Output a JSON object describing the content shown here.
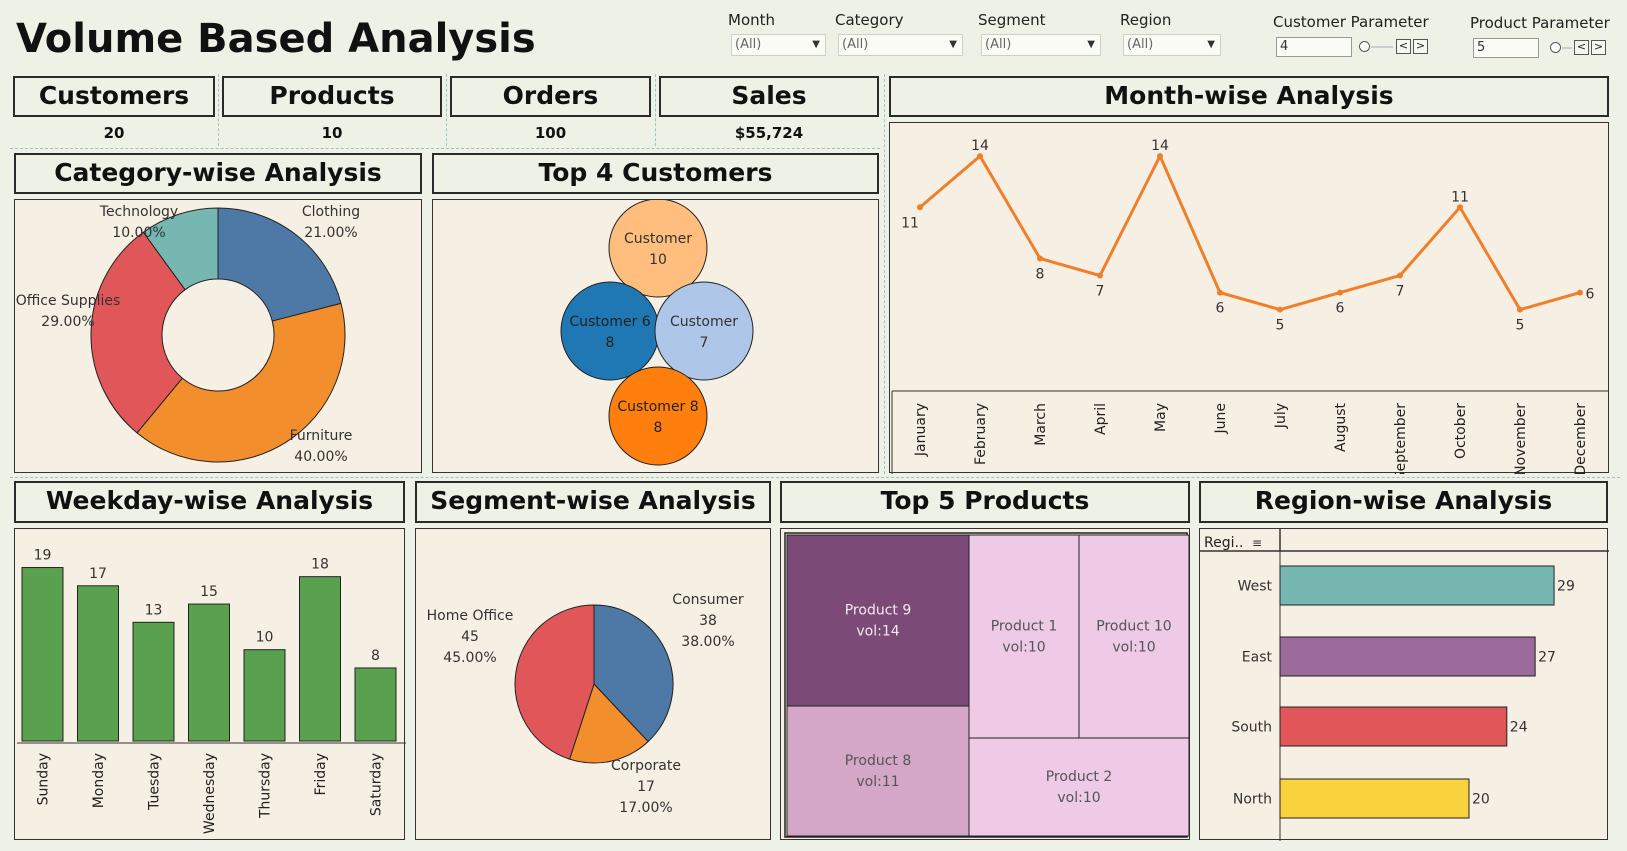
{
  "title": "Volume Based Analysis",
  "filters": [
    {
      "label": "Month",
      "value": "(All)"
    },
    {
      "label": "Category",
      "value": "(All)"
    },
    {
      "label": "Segment",
      "value": "(All)"
    },
    {
      "label": "Region",
      "value": "(All)"
    }
  ],
  "params": [
    {
      "label": "Customer Parameter",
      "value": "4"
    },
    {
      "label": "Product Parameter",
      "value": "5"
    }
  ],
  "kpis": [
    {
      "label": "Customers",
      "value": "20"
    },
    {
      "label": "Products",
      "value": "10"
    },
    {
      "label": "Orders",
      "value": "100"
    },
    {
      "label": "Sales",
      "value": "$55,724"
    }
  ],
  "sections": {
    "category": "Category-wise Analysis",
    "top_customers": "Top 4 Customers",
    "month": "Month-wise Analysis",
    "weekday": "Weekday-wise Analysis",
    "segment": "Segment-wise Analysis",
    "top_products": "Top 5 Products",
    "region": "Region-wise Analysis"
  },
  "region_header": "Regi..",
  "colors": {
    "background": "#eef1e6",
    "panel": "#f6efe3",
    "line": "#f07f2a",
    "bar_green": "#59a14f"
  },
  "chart_data": [
    {
      "id": "category",
      "type": "pie",
      "donut": true,
      "slices": [
        {
          "label": "Clothing",
          "value": 21.0,
          "text": "21.00%",
          "color": "#4e79a7"
        },
        {
          "label": "Furniture",
          "value": 40.0,
          "text": "40.00%",
          "color": "#f28e2b"
        },
        {
          "label": "Office Supplies",
          "value": 29.0,
          "text": "29.00%",
          "color": "#e15759"
        },
        {
          "label": "Technology",
          "value": 10.0,
          "text": "10.00%",
          "color": "#76b7b2"
        }
      ]
    },
    {
      "id": "top_customers",
      "type": "bubble",
      "items": [
        {
          "name": "Customer",
          "value": 10,
          "color": "#ffbe7d"
        },
        {
          "name": "Customer 6",
          "value": 8,
          "color": "#1f77b4"
        },
        {
          "name": "Customer",
          "value": 7,
          "color": "#aec7e8"
        },
        {
          "name": "Customer 8",
          "value": 8,
          "color": "#ff7f0e"
        }
      ]
    },
    {
      "id": "month",
      "type": "line",
      "categories": [
        "January",
        "February",
        "March",
        "April",
        "May",
        "June",
        "July",
        "August",
        "September",
        "October",
        "November",
        "December"
      ],
      "values": [
        11,
        14,
        8,
        7,
        14,
        6,
        5,
        6,
        7,
        11,
        5,
        6
      ],
      "ylim": [
        0,
        15
      ]
    },
    {
      "id": "weekday",
      "type": "bar",
      "categories": [
        "Sunday",
        "Monday",
        "Tuesday",
        "Wednesday",
        "Thursday",
        "Friday",
        "Saturday"
      ],
      "values": [
        19,
        17,
        13,
        15,
        10,
        18,
        8
      ],
      "ylim": [
        0,
        20
      ]
    },
    {
      "id": "segment",
      "type": "pie",
      "slices": [
        {
          "label": "Consumer",
          "value": 38,
          "text": "38.00%",
          "color": "#4e79a7"
        },
        {
          "label": "Corporate",
          "value": 17,
          "text": "17.00%",
          "color": "#f28e2b"
        },
        {
          "label": "Home Office",
          "value": 45,
          "text": "45.00%",
          "color": "#e15759"
        }
      ]
    },
    {
      "id": "top_products",
      "type": "treemap",
      "items": [
        {
          "name": "Product 9",
          "value": 14,
          "text": "vol:14",
          "color": "#7b4a77"
        },
        {
          "name": "Product 1",
          "value": 10,
          "text": "vol:10",
          "color": "#eecae6"
        },
        {
          "name": "Product 10",
          "value": 10,
          "text": "vol:10",
          "color": "#eecae6"
        },
        {
          "name": "Product 8",
          "value": 11,
          "text": "vol:11",
          "color": "#d4a6c8"
        },
        {
          "name": "Product 2",
          "value": 10,
          "text": "vol:10",
          "color": "#eecae6"
        }
      ]
    },
    {
      "id": "region",
      "type": "bar",
      "orientation": "horizontal",
      "categories": [
        "West",
        "East",
        "South",
        "North"
      ],
      "values": [
        29,
        27,
        24,
        20
      ],
      "colors": [
        "#76b7b2",
        "#9c6b9b",
        "#e15759",
        "#f9d33d"
      ]
    }
  ]
}
